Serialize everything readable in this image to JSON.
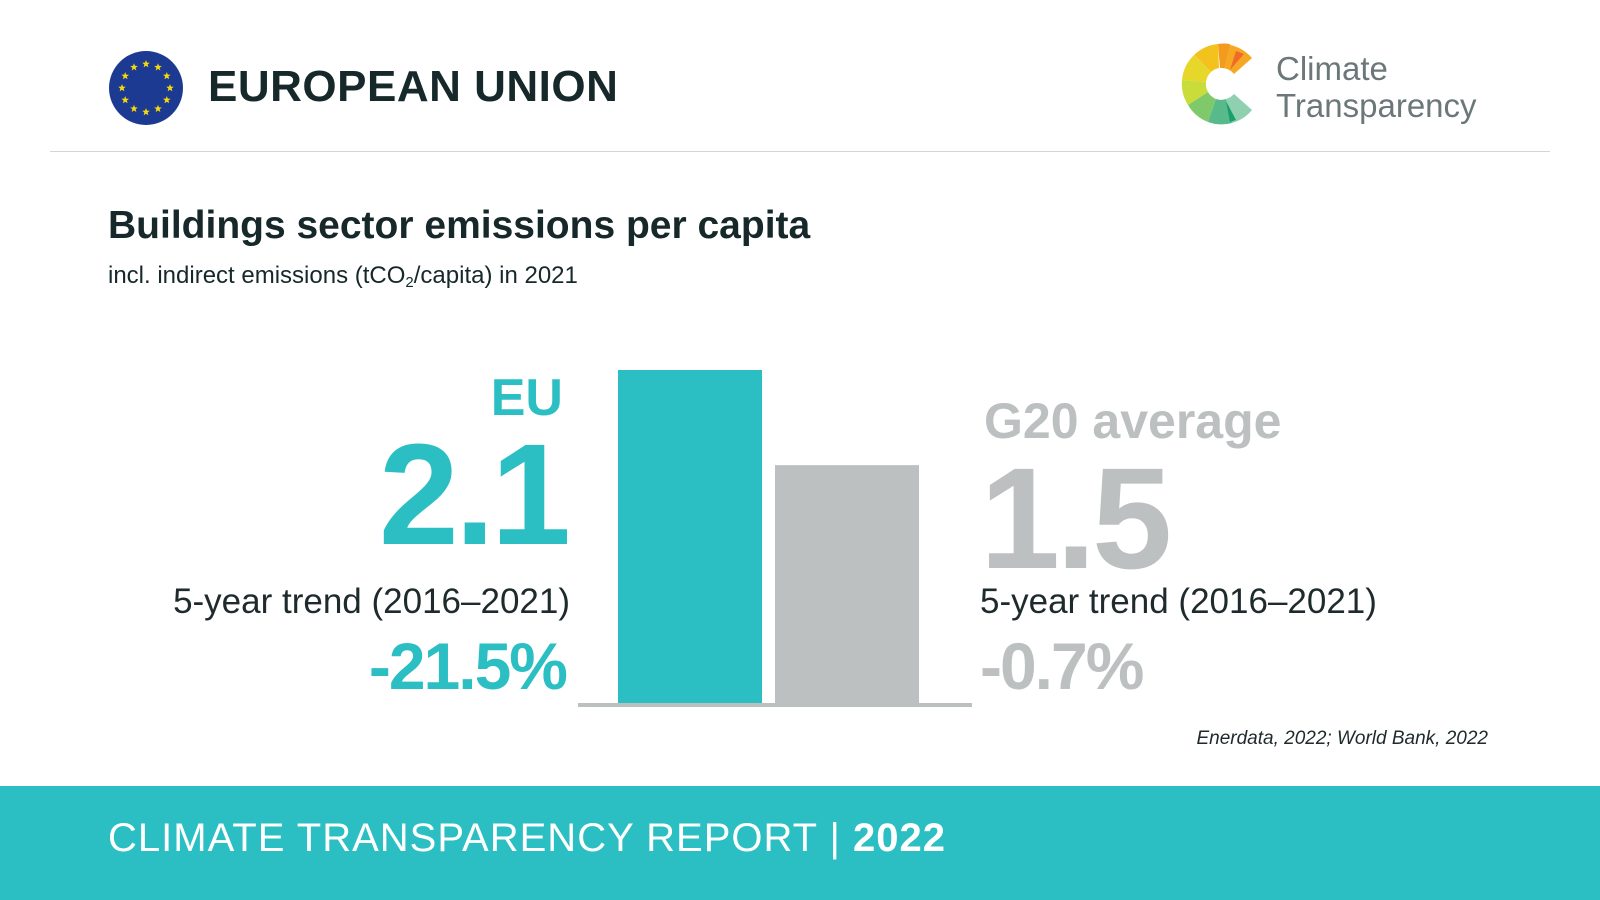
{
  "header": {
    "country": "EUROPEAN UNION",
    "brand_line1": "Climate",
    "brand_line2": "Transparency"
  },
  "colors": {
    "eu_accent": "#2bbfc4",
    "g20_gray": "#bcc0c1",
    "eu_flag_blue": "#1d3a93",
    "eu_flag_stars": "#f5d90b"
  },
  "icons": {
    "flag": "eu-flag-icon",
    "logo": "climate-transparency-logo"
  },
  "chart_data": {
    "type": "bar",
    "title": "Buildings sector emissions per capita",
    "subtitle_prefix": "incl. indirect emissions (tCO",
    "subtitle_sub": "2",
    "subtitle_suffix": "/capita) in 2021",
    "categories": [
      "EU",
      "G20 average"
    ],
    "values": [
      2.1,
      1.5
    ],
    "value_labels": [
      "2.1",
      "1.5"
    ],
    "trend_label": "5-year trend (2016–2021)",
    "trends": [
      "-21.5%",
      "-0.7%"
    ],
    "ylim": [
      0,
      2.1
    ],
    "grid": false,
    "legend": "none"
  },
  "source": "Enerdata, 2022; World Bank, 2022",
  "footer": {
    "report": "CLIMATE TRANSPARENCY REPORT",
    "separator": "|",
    "year": "2022"
  }
}
